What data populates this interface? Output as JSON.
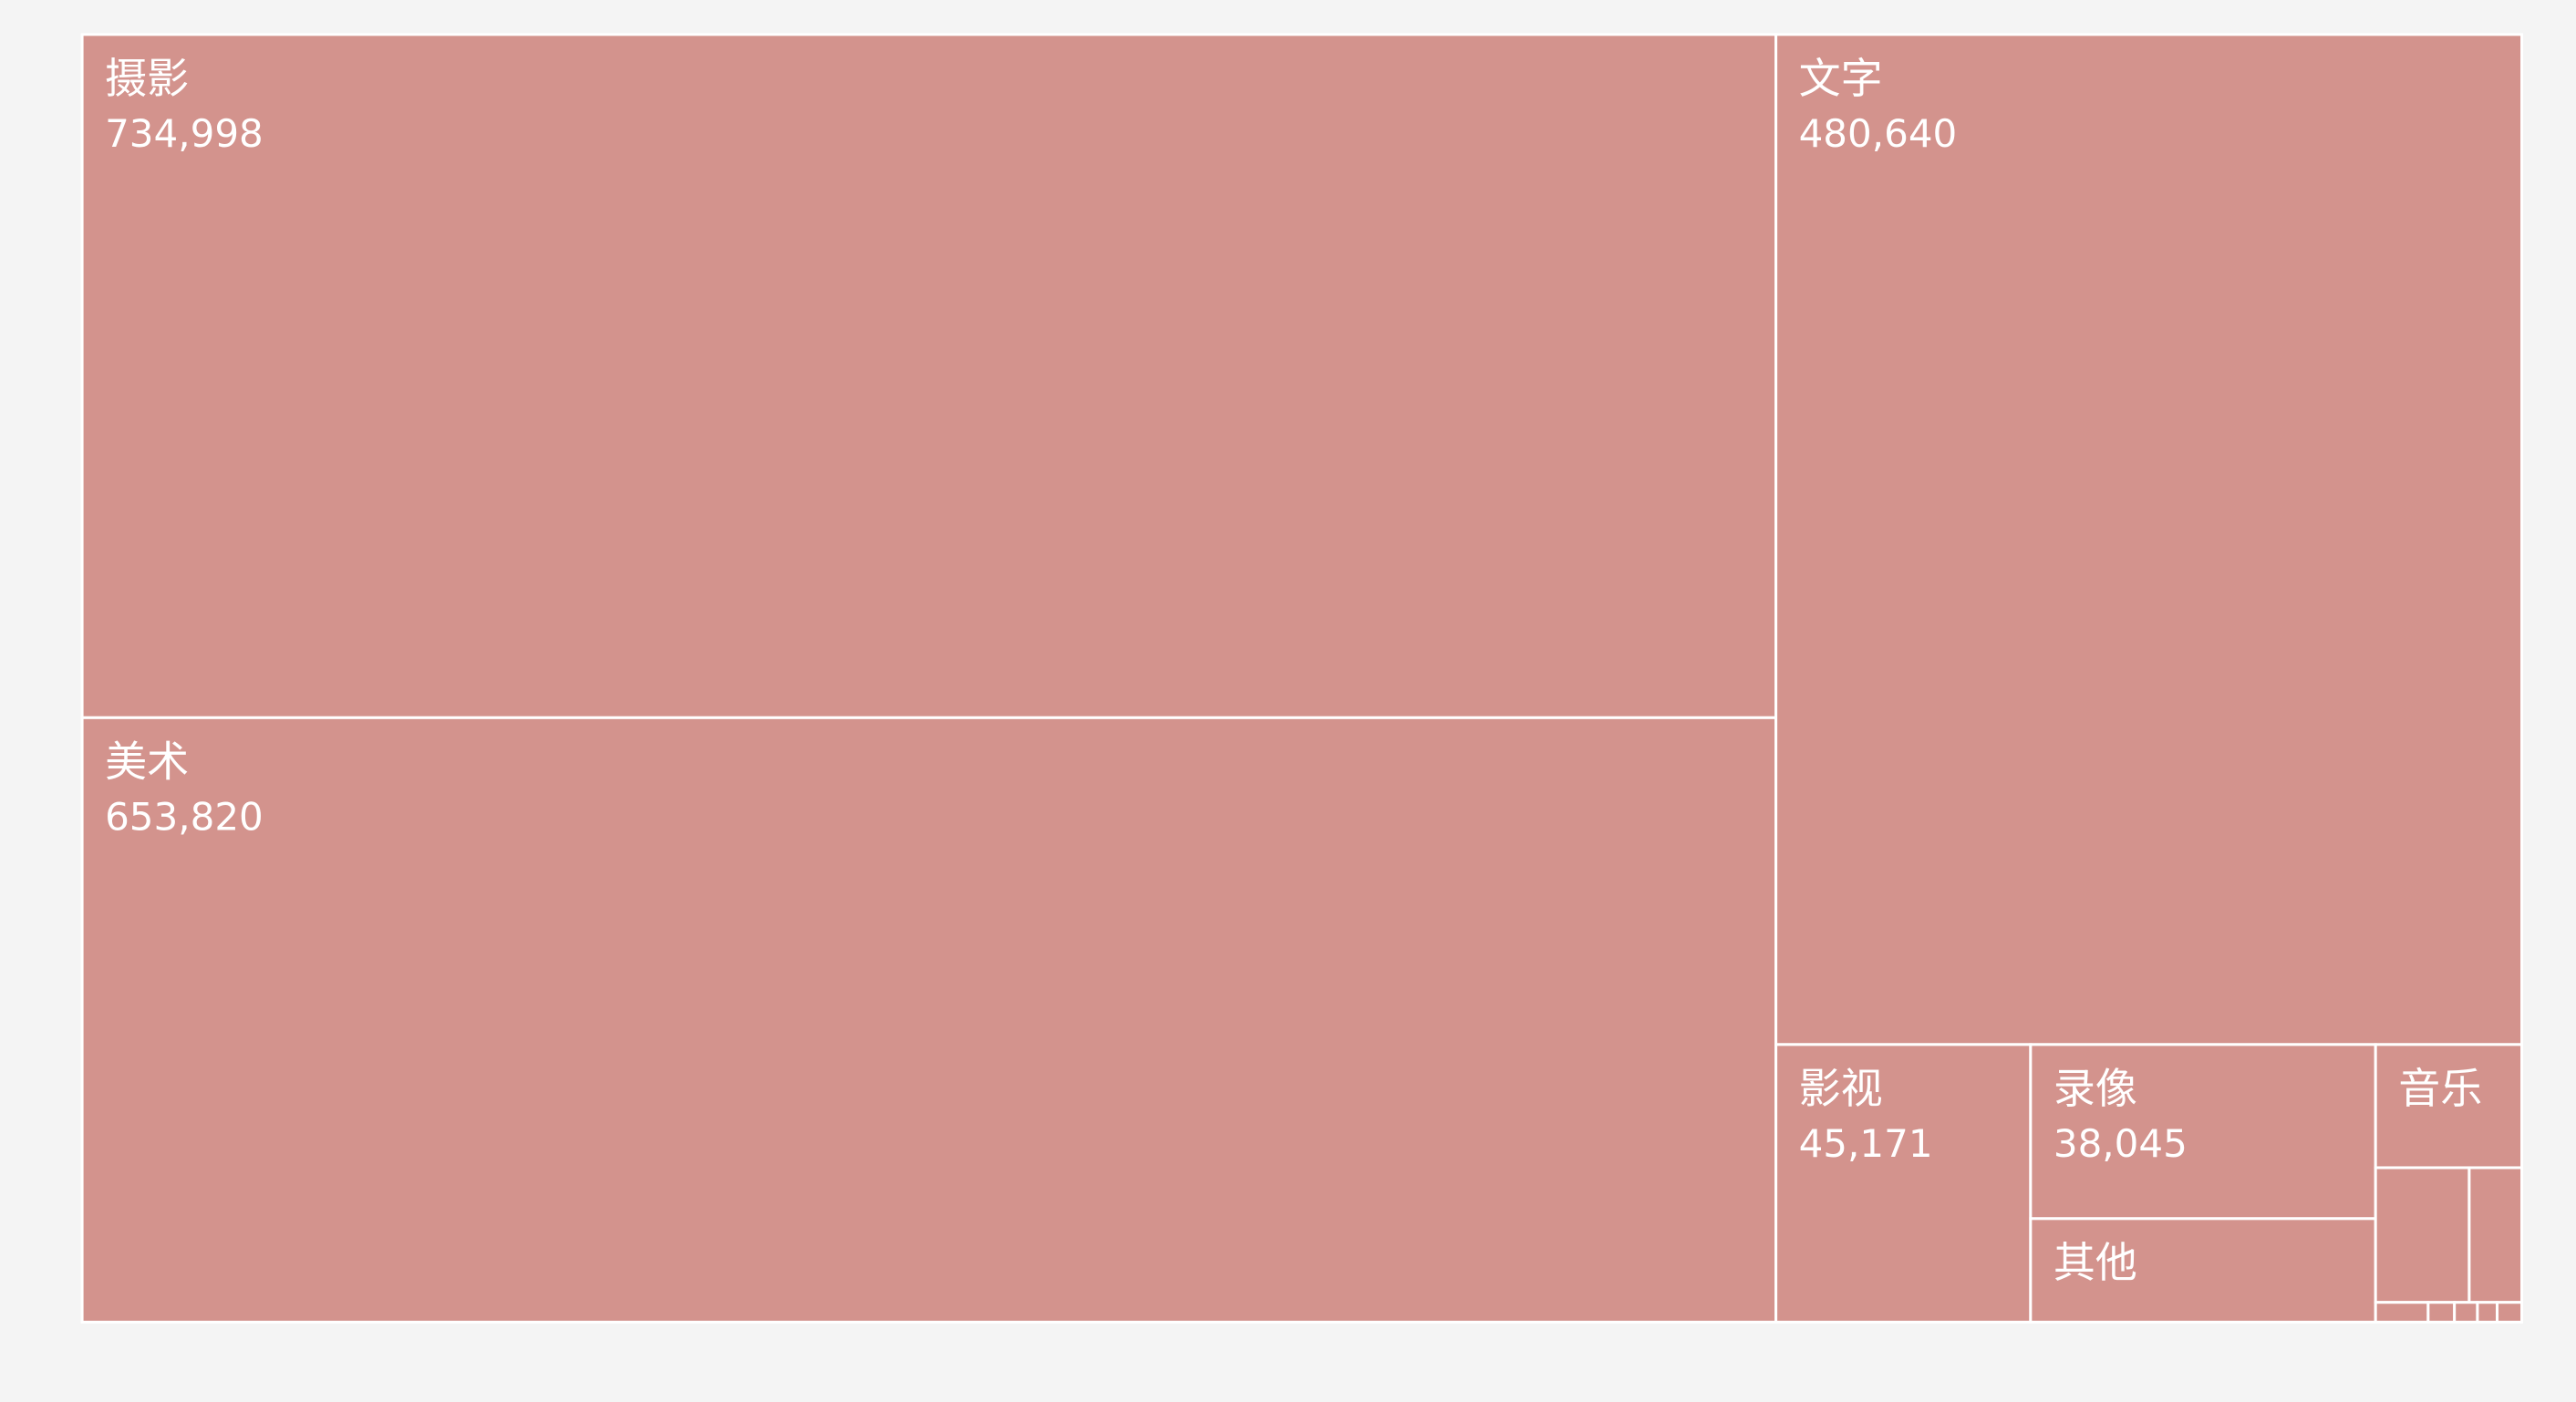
{
  "chart_data": {
    "type": "treemap",
    "title": "",
    "color": "#d3938d",
    "border_color": "#ffffff",
    "background": "#f4f4f4",
    "items": [
      {
        "name": "摄影",
        "value": 734998,
        "value_label": "734,998"
      },
      {
        "name": "美术",
        "value": 653820,
        "value_label": "653,820"
      },
      {
        "name": "文字",
        "value": 480640,
        "value_label": "480,640"
      },
      {
        "name": "影视",
        "value": 45171,
        "value_label": "45,171"
      },
      {
        "name": "录像",
        "value": 38045,
        "value_label": "38,045"
      },
      {
        "name": "其他",
        "value_label": ""
      },
      {
        "name": "音乐",
        "value_label": ""
      },
      {
        "name": "",
        "value_label": ""
      },
      {
        "name": "",
        "value_label": ""
      },
      {
        "name": "",
        "value_label": ""
      },
      {
        "name": "",
        "value_label": ""
      },
      {
        "name": "",
        "value_label": ""
      },
      {
        "name": "",
        "value_label": ""
      },
      {
        "name": "",
        "value_label": ""
      }
    ]
  }
}
